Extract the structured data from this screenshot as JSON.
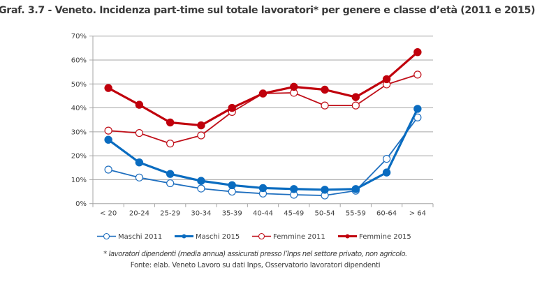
{
  "chart_data": {
    "type": "line",
    "title": "Graf. 3.7 - Veneto. Incidenza part-time sul totale lavoratori* per genere e classe d’età (2011 e 2015)",
    "xlabel": "",
    "ylabel": "",
    "ylim": [
      0,
      70
    ],
    "y_ticks": [
      0,
      10,
      20,
      30,
      40,
      50,
      60,
      70
    ],
    "y_tick_labels": [
      "0%",
      "10%",
      "20%",
      "30%",
      "40%",
      "50%",
      "60%",
      "70%"
    ],
    "grid": true,
    "legend_position": "bottom",
    "categories": [
      "< 20",
      "20-24",
      "25-29",
      "30-34",
      "35-39",
      "40-44",
      "45-49",
      "50-54",
      "55-59",
      "60-64",
      "> 64"
    ],
    "series": [
      {
        "name": "Maschi 2011",
        "color": "#1f6fbf",
        "marker": "open",
        "weight": "thin",
        "values": [
          14.2,
          10.9,
          8.5,
          6.3,
          5.0,
          4.2,
          3.7,
          3.4,
          5.4,
          18.7,
          36.0
        ]
      },
      {
        "name": "Maschi 2015",
        "color": "#0a6cc0",
        "marker": "filled",
        "weight": "thick",
        "values": [
          26.7,
          17.2,
          12.4,
          9.5,
          7.7,
          6.5,
          6.1,
          5.8,
          6.1,
          13.0,
          39.6
        ]
      },
      {
        "name": "Femmine 2011",
        "color": "#c0101a",
        "marker": "open",
        "weight": "thin",
        "values": [
          30.5,
          29.5,
          25.1,
          28.5,
          38.3,
          46.0,
          46.3,
          41.0,
          41.0,
          49.8,
          53.9
        ]
      },
      {
        "name": "Femmine 2015",
        "color": "#c0000c",
        "marker": "filled",
        "weight": "thick",
        "values": [
          48.3,
          41.3,
          33.9,
          32.7,
          40.0,
          46.0,
          48.8,
          47.6,
          44.5,
          52.0,
          63.3
        ]
      }
    ],
    "footnote": "* lavoratori dipendenti (media annua) assicurati presso l’Inps nel settore privato, non agricolo.",
    "source": "Fonte: elab. Veneto Lavoro su dati Inps, Osservatorio lavoratori dipendenti"
  }
}
